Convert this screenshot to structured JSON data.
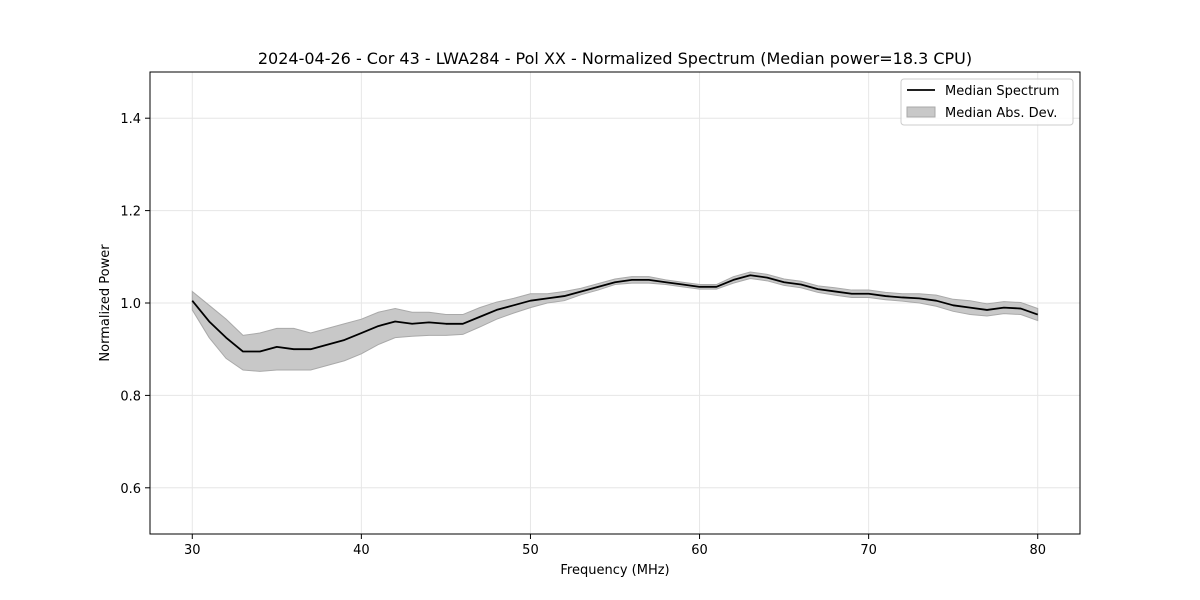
{
  "chart_data": {
    "type": "line",
    "title": "2024-04-26 - Cor 43 - LWA284 - Pol XX - Normalized Spectrum (Median power=18.3 CPU)",
    "xlabel": "Frequency (MHz)",
    "ylabel": "Normalized Power",
    "xlim": [
      27.5,
      82.5
    ],
    "ylim": [
      0.5,
      1.5
    ],
    "xticks": [
      30,
      40,
      50,
      60,
      70,
      80
    ],
    "xtick_labels": [
      "30",
      "40",
      "50",
      "60",
      "70",
      "80"
    ],
    "yticks": [
      0.6,
      0.8,
      1.0,
      1.2,
      1.4
    ],
    "ytick_labels": [
      "0.6",
      "0.8",
      "1.0",
      "1.2",
      "1.4"
    ],
    "grid": true,
    "legend_position": "top-right",
    "legend": [
      "Median Spectrum",
      "Median Abs. Dev."
    ],
    "colors": {
      "line": "#000000",
      "band": "#c8c8c8",
      "band_edge": "#a9a9a9",
      "grid": "#e6e6e6",
      "axes": "#000000"
    },
    "series": [
      {
        "name": "Median Spectrum",
        "x": [
          30,
          31,
          32,
          33,
          34,
          35,
          36,
          37,
          38,
          39,
          40,
          41,
          42,
          43,
          44,
          45,
          46,
          47,
          48,
          49,
          50,
          51,
          52,
          53,
          54,
          55,
          56,
          57,
          58,
          59,
          60,
          61,
          62,
          63,
          64,
          65,
          66,
          67,
          68,
          69,
          70,
          71,
          72,
          73,
          74,
          75,
          76,
          77,
          78,
          79,
          80
        ],
        "y": [
          1.005,
          0.96,
          0.925,
          0.895,
          0.895,
          0.905,
          0.9,
          0.9,
          0.91,
          0.92,
          0.935,
          0.95,
          0.96,
          0.955,
          0.958,
          0.955,
          0.955,
          0.97,
          0.985,
          0.995,
          1.005,
          1.01,
          1.015,
          1.025,
          1.035,
          1.045,
          1.05,
          1.05,
          1.045,
          1.04,
          1.035,
          1.035,
          1.05,
          1.06,
          1.055,
          1.045,
          1.04,
          1.03,
          1.025,
          1.02,
          1.02,
          1.015,
          1.012,
          1.01,
          1.005,
          0.995,
          0.99,
          0.985,
          0.99,
          0.988,
          0.975
        ]
      },
      {
        "name": "Median Abs. Dev.",
        "x": [
          30,
          31,
          32,
          33,
          34,
          35,
          36,
          37,
          38,
          39,
          40,
          41,
          42,
          43,
          44,
          45,
          46,
          47,
          48,
          49,
          50,
          51,
          52,
          53,
          54,
          55,
          56,
          57,
          58,
          59,
          60,
          61,
          62,
          63,
          64,
          65,
          66,
          67,
          68,
          69,
          70,
          71,
          72,
          73,
          74,
          75,
          76,
          77,
          78,
          79,
          80
        ],
        "lower": [
          0.985,
          0.925,
          0.88,
          0.855,
          0.852,
          0.855,
          0.855,
          0.855,
          0.865,
          0.875,
          0.89,
          0.91,
          0.925,
          0.928,
          0.93,
          0.93,
          0.932,
          0.948,
          0.965,
          0.978,
          0.99,
          1.0,
          1.005,
          1.018,
          1.028,
          1.04,
          1.043,
          1.043,
          1.04,
          1.035,
          1.03,
          1.03,
          1.043,
          1.053,
          1.048,
          1.038,
          1.033,
          1.023,
          1.017,
          1.012,
          1.012,
          1.007,
          1.004,
          1.0,
          0.993,
          0.982,
          0.975,
          0.972,
          0.977,
          0.975,
          0.962
        ],
        "upper": [
          1.025,
          0.995,
          0.965,
          0.93,
          0.935,
          0.945,
          0.945,
          0.935,
          0.945,
          0.955,
          0.965,
          0.98,
          0.988,
          0.98,
          0.98,
          0.975,
          0.975,
          0.99,
          1.002,
          1.01,
          1.02,
          1.02,
          1.025,
          1.032,
          1.042,
          1.052,
          1.057,
          1.057,
          1.05,
          1.045,
          1.04,
          1.04,
          1.057,
          1.067,
          1.062,
          1.052,
          1.047,
          1.037,
          1.033,
          1.028,
          1.028,
          1.023,
          1.02,
          1.02,
          1.017,
          1.008,
          1.005,
          0.998,
          1.003,
          1.001,
          0.988
        ]
      }
    ]
  }
}
